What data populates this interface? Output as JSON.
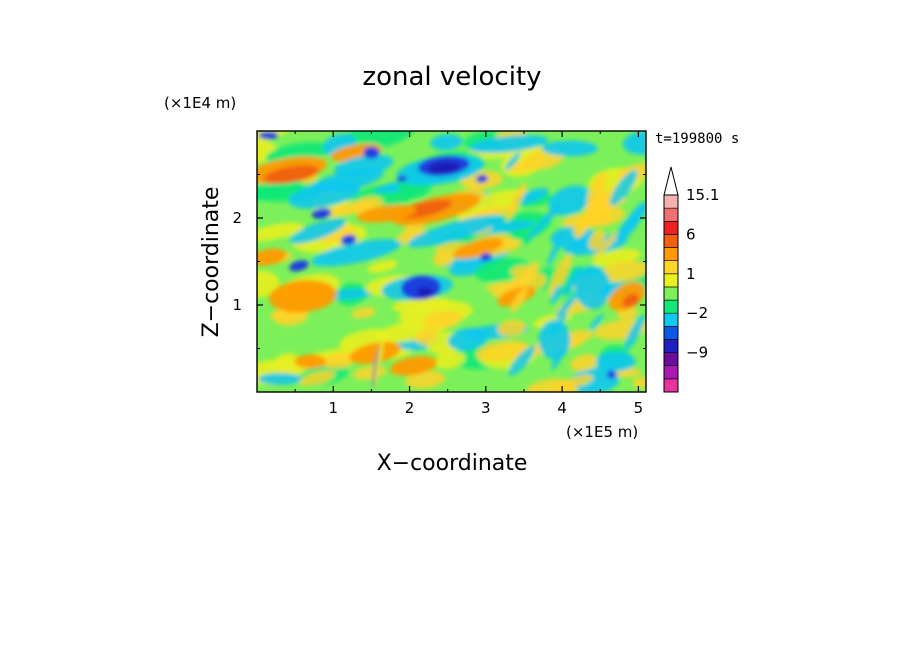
{
  "chart_data": {
    "type": "heatmap",
    "title": "zonal velocity",
    "xlabel": "X−coordinate",
    "ylabel": "Z−coordinate",
    "x_multiplier": "(×1E5 m)",
    "y_multiplier": "(×1E4 m)",
    "time_label": "t=199800 s",
    "xlim": [
      0,
      5.1
    ],
    "ylim": [
      0,
      3.0
    ],
    "x_ticks": [
      1,
      2,
      3,
      4,
      5
    ],
    "x_tick_labels": [
      "1",
      "2",
      "3",
      "4",
      "5"
    ],
    "y_ticks": [
      1,
      2
    ],
    "y_tick_labels": [
      "1",
      "2"
    ],
    "grid": false,
    "colorbar": {
      "levels": [
        -15,
        -12,
        -9,
        -6,
        -4,
        -2,
        -1,
        0,
        1,
        2,
        4,
        6,
        9,
        12,
        15.1
      ],
      "colors": [
        "#e8329e",
        "#a81ab2",
        "#6a0d9a",
        "#1f1fc4",
        "#0a5ae6",
        "#10c8f0",
        "#10e878",
        "#7cf05a",
        "#e8f020",
        "#ffd428",
        "#ff9a00",
        "#f06010",
        "#ee2222",
        "#f07070",
        "#f5b0b0"
      ],
      "tick_labels": [
        {
          "value": 15.1,
          "label": "15.1"
        },
        {
          "value": 6,
          "label": "6"
        },
        {
          "value": 1,
          "label": "1"
        },
        {
          "value": -2,
          "label": "−2"
        },
        {
          "value": -9,
          "label": "−9"
        }
      ],
      "extend": "max"
    }
  }
}
